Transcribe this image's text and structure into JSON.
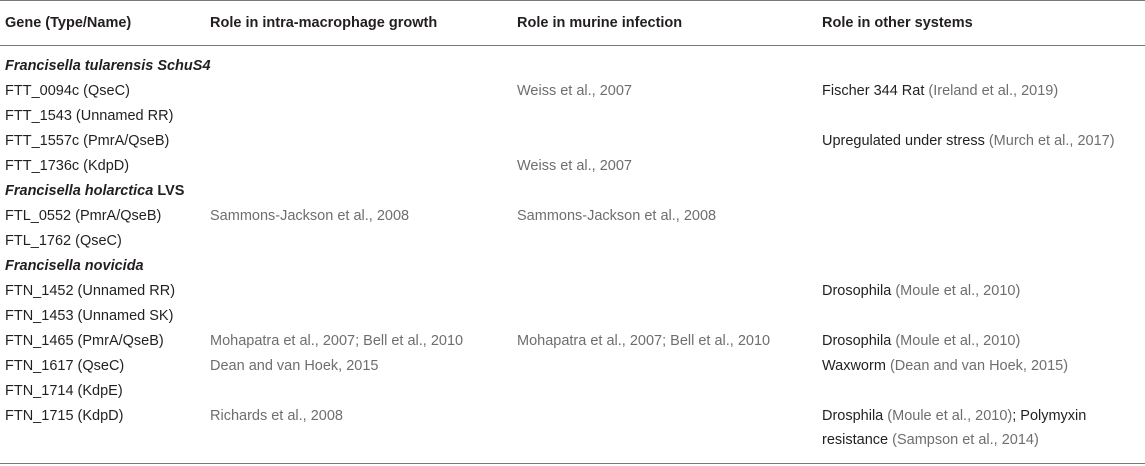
{
  "table": {
    "headers": [
      "Gene (Type/Name)",
      "Role in intra-macrophage growth",
      "Role in murine infection",
      "Role in other systems"
    ],
    "sections": [
      {
        "title": "Francisella tularensis SchuS4",
        "title_plain": "",
        "rows": [
          {
            "gene": "FTT_0094c (QseC)",
            "macrophage": "",
            "murine": "Weiss et al., 2007",
            "other_text": "Fischer 344 Rat ",
            "other_ref": "(Ireland et al., 2019)"
          },
          {
            "gene": "FTT_1543 (Unnamed RR)",
            "macrophage": "",
            "murine": "",
            "other_text": "",
            "other_ref": ""
          },
          {
            "gene": "FTT_1557c (PmrA/QseB)",
            "macrophage": "",
            "murine": "",
            "other_text": "Upregulated under stress ",
            "other_ref": "(Murch et al., 2017)"
          },
          {
            "gene": "FTT_1736c (KdpD)",
            "macrophage": "",
            "murine": "Weiss et al., 2007",
            "other_text": "",
            "other_ref": ""
          }
        ]
      },
      {
        "title": "Francisella holarctica",
        "title_plain": " LVS",
        "rows": [
          {
            "gene": "FTL_0552 (PmrA/QseB)",
            "macrophage": "Sammons-Jackson et al., 2008",
            "murine": "Sammons-Jackson et al., 2008",
            "other_text": "",
            "other_ref": ""
          },
          {
            "gene": "FTL_1762 (QseC)",
            "macrophage": "",
            "murine": "",
            "other_text": "",
            "other_ref": ""
          }
        ]
      },
      {
        "title": "Francisella novicida",
        "title_plain": "",
        "rows": [
          {
            "gene": "FTN_1452 (Unnamed RR)",
            "macrophage": "",
            "murine": "",
            "other_text": "Drosophila ",
            "other_ref": "(Moule et al., 2010)"
          },
          {
            "gene": "FTN_1453 (Unnamed SK)",
            "macrophage": "",
            "murine": "",
            "other_text": "",
            "other_ref": ""
          },
          {
            "gene": "FTN_1465 (PmrA/QseB)",
            "macrophage": "Mohapatra et al., 2007; Bell et al., 2010",
            "murine": "Mohapatra et al., 2007; Bell et al., 2010",
            "other_text": "Drosophila ",
            "other_ref": "(Moule et al., 2010)"
          },
          {
            "gene": "FTN_1617 (QseC)",
            "macrophage": "Dean and van Hoek, 2015",
            "murine": "",
            "other_text": "Waxworm ",
            "other_ref": "(Dean and van Hoek, 2015)"
          },
          {
            "gene": "FTN_1714 (KdpE)",
            "macrophage": "",
            "murine": "",
            "other_text": "",
            "other_ref": ""
          }
        ],
        "last_row": {
          "gene": "FTN_1715 (KdpD)",
          "macrophage": "Richards et al., 2008",
          "other_a": "Drosphila ",
          "other_a_ref": "(Moule et al., 2010)",
          "other_sep": "; Polymyxin",
          "other_b": "resistance ",
          "other_b_ref": "(Sampson et al., 2014)"
        }
      }
    ]
  }
}
